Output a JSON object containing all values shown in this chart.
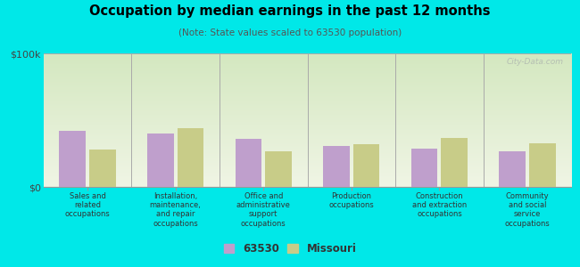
{
  "title": "Occupation by median earnings in the past 12 months",
  "subtitle": "(Note: State values scaled to 63530 population)",
  "categories": [
    "Sales and\nrelated\noccupations",
    "Installation,\nmaintenance,\nand repair\noccupations",
    "Office and\nadministrative\nsupport\noccupations",
    "Production\noccupations",
    "Construction\nand extraction\noccupations",
    "Community\nand social\nservice\noccupations"
  ],
  "values_63530": [
    42000,
    40000,
    36000,
    31000,
    29000,
    27000
  ],
  "values_missouri": [
    28000,
    44000,
    27000,
    32000,
    37000,
    33000
  ],
  "color_63530": "#bf9fcc",
  "color_missouri": "#c8cc88",
  "ylim": [
    0,
    100000
  ],
  "yticks": [
    0,
    100000
  ],
  "ytick_labels": [
    "$0",
    "$100k"
  ],
  "bg_color_top": "#d4e8c0",
  "bg_color_bottom": "#eef5e0",
  "outer_bg": "#00e8e8",
  "legend_label_63530": "63530",
  "legend_label_missouri": "Missouri",
  "watermark": "City-Data.com"
}
